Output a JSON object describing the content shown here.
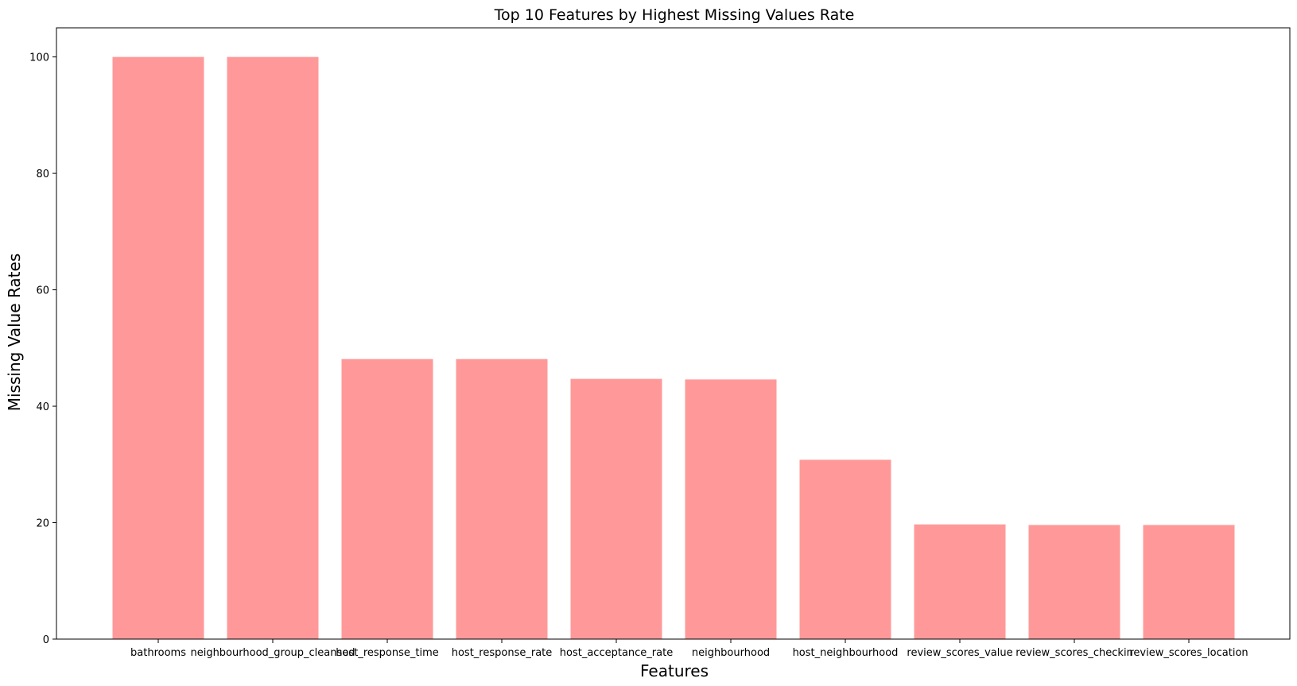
{
  "chart_data": {
    "type": "bar",
    "title": "Top 10 Features by Highest Missing Values Rate",
    "xlabel": "Features",
    "ylabel": "Missing Value Rates",
    "categories": [
      "bathrooms",
      "neighbourhood_group_cleansed",
      "host_response_time",
      "host_response_rate",
      "host_acceptance_rate",
      "neighbourhood",
      "host_neighbourhood",
      "review_scores_value",
      "review_scores_checkin",
      "review_scores_location"
    ],
    "values": [
      100,
      100,
      48.1,
      48.1,
      44.7,
      44.6,
      30.8,
      19.7,
      19.6,
      19.6
    ],
    "ylim": [
      0,
      105
    ],
    "yticks": [
      "0",
      "20",
      "40",
      "60",
      "80",
      "100"
    ],
    "grid": false,
    "legend": "none",
    "bar_color": "#ff9999"
  }
}
